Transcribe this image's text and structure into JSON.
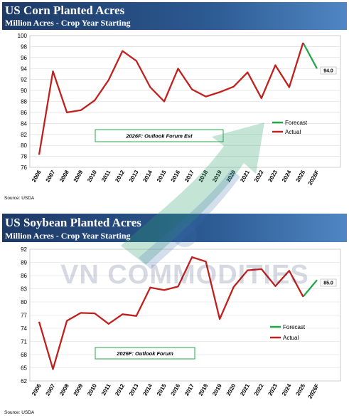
{
  "watermark": "VN COMMODITIES",
  "chart_data": [
    {
      "type": "line",
      "title": "US Corn Planted Acres",
      "subtitle": "Million Acres - Crop Year Starting",
      "source": "Source: USDA",
      "annotation": "2026F: Outlook Forum Est",
      "end_label": "94.0",
      "ylim": [
        76,
        100
      ],
      "yticks": [
        76,
        78,
        80,
        82,
        84,
        86,
        88,
        90,
        92,
        94,
        96,
        98,
        100
      ],
      "categories": [
        "2006",
        "2007",
        "2008",
        "2009",
        "2010",
        "2011",
        "2012",
        "2013",
        "2014",
        "2015",
        "2016",
        "2017",
        "2018",
        "2019",
        "2020",
        "2021",
        "2022",
        "2023",
        "2024",
        "2025",
        "2026F"
      ],
      "legend_position": "right",
      "series": [
        {
          "name": "Forecast",
          "color": "#22a84a",
          "values": [
            null,
            null,
            null,
            null,
            null,
            null,
            null,
            null,
            null,
            null,
            null,
            null,
            null,
            null,
            null,
            null,
            null,
            null,
            null,
            98.7,
            94.0
          ]
        },
        {
          "name": "Actual",
          "color": "#c0201e",
          "values": [
            78.3,
            93.5,
            86.0,
            86.4,
            88.2,
            91.9,
            97.2,
            95.4,
            90.6,
            88.0,
            94.0,
            90.2,
            88.9,
            89.7,
            90.7,
            93.3,
            88.6,
            94.6,
            90.6,
            98.7,
            null
          ]
        }
      ]
    },
    {
      "type": "line",
      "title": "US Soybean Planted Acres",
      "subtitle": "Million Acres - Crop Year Starting",
      "source": "Source: USDA",
      "annotation": "2026F: Outlook Forum",
      "end_label": "85.0",
      "ylim": [
        62,
        92
      ],
      "yticks": [
        62,
        65,
        68,
        71,
        74,
        77,
        80,
        83,
        86,
        89,
        92
      ],
      "categories": [
        "2006",
        "2007",
        "2008",
        "2009",
        "2010",
        "2011",
        "2012",
        "2013",
        "2014",
        "2015",
        "2016",
        "2017",
        "2018",
        "2019",
        "2020",
        "2021",
        "2022",
        "2023",
        "2024",
        "2025",
        "2026F"
      ],
      "legend_position": "right",
      "series": [
        {
          "name": "Forecast",
          "color": "#22a84a",
          "values": [
            null,
            null,
            null,
            null,
            null,
            null,
            null,
            null,
            null,
            null,
            null,
            null,
            null,
            null,
            null,
            null,
            null,
            null,
            null,
            81.2,
            85.0
          ]
        },
        {
          "name": "Actual",
          "color": "#c0201e",
          "values": [
            75.5,
            64.7,
            75.7,
            77.5,
            77.4,
            75.0,
            77.2,
            76.8,
            83.3,
            82.7,
            83.5,
            90.2,
            89.2,
            76.1,
            83.4,
            87.2,
            87.5,
            83.6,
            87.1,
            81.2,
            null
          ]
        }
      ]
    }
  ]
}
